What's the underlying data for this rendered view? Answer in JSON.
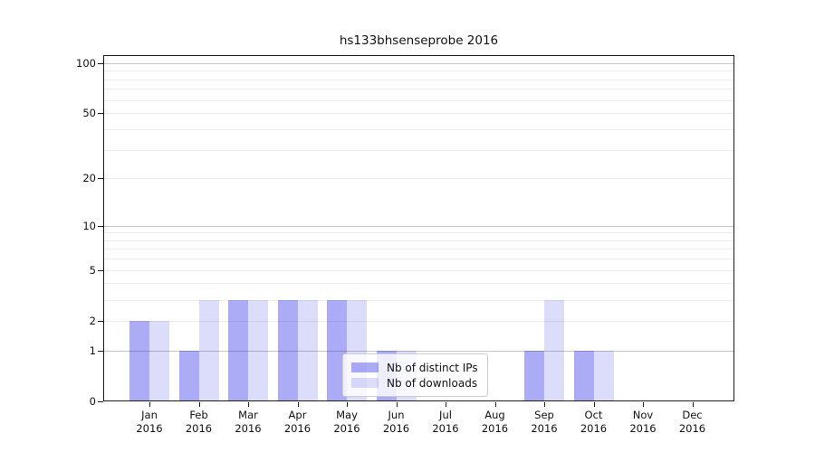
{
  "title": "hs133bhsenseprobe 2016",
  "chart_data": {
    "type": "bar",
    "title": "hs133bhsenseprobe 2016",
    "categories": [
      "Jan 2016",
      "Feb 2016",
      "Mar 2016",
      "Apr 2016",
      "May 2016",
      "Jun 2016",
      "Jul 2016",
      "Aug 2016",
      "Sep 2016",
      "Oct 2016",
      "Nov 2016",
      "Dec 2016"
    ],
    "series": [
      {
        "name": "Nb of distinct IPs",
        "color": "rgba(17,17,229,0.35)",
        "values": [
          2,
          1,
          3,
          3,
          3,
          1,
          0,
          0,
          1,
          1,
          0,
          0
        ]
      },
      {
        "name": "Nb of downloads",
        "color": "rgba(17,17,229,0.15)",
        "values": [
          2,
          3,
          3,
          3,
          3,
          1,
          0,
          0,
          3,
          1,
          0,
          0
        ]
      }
    ],
    "xlabel": "",
    "ylabel": "",
    "yscale": "log(1+v)",
    "ylim": [
      0,
      111
    ],
    "ytick_values": [
      0,
      1,
      2,
      5,
      10,
      20,
      50,
      100
    ],
    "ytick_labels": [
      "0",
      "1",
      "2",
      "5",
      "10",
      "20",
      "50",
      "100"
    ],
    "grid": "horizontal major+minor",
    "legend_position": "lower center"
  },
  "colors": {
    "bar_distinct_ips": "rgba(17,17,229,0.35)",
    "bar_downloads": "rgba(17,17,229,0.15)",
    "grid_major": "#c6c6c6",
    "grid_minor": "#ececec",
    "axis": "#1a1a1a",
    "background": "#ffffff"
  }
}
